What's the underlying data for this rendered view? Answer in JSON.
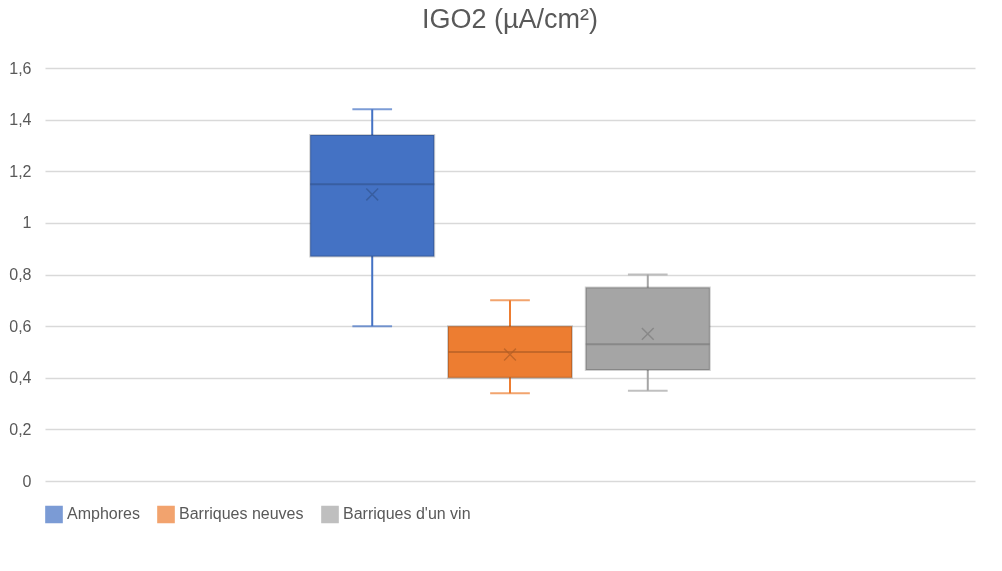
{
  "chart_data": {
    "type": "box",
    "title": "IGO2 (µA/cm²)",
    "categories": [
      null
    ],
    "series": [
      {
        "name": "Amphores",
        "color": "#4472c4",
        "boxes": [
          {
            "low": 0.6,
            "q1": 0.87,
            "median": 1.15,
            "q3": 1.34,
            "high": 1.44,
            "mean": 1.11
          }
        ]
      },
      {
        "name": "Barriques neuves",
        "color": "#ed7d31",
        "boxes": [
          {
            "low": 0.34,
            "q1": 0.4,
            "median": 0.5,
            "q3": 0.6,
            "high": 0.7,
            "mean": 0.49
          }
        ]
      },
      {
        "name": "Barriques d'un vin",
        "color": "#a5a5a5",
        "boxes": [
          {
            "low": 0.35,
            "q1": 0.43,
            "median": 0.53,
            "q3": 0.75,
            "high": 0.8,
            "mean": 0.57
          }
        ]
      }
    ],
    "ylim": [
      0,
      1.6
    ],
    "yticks": [
      0,
      {
        "value": 0.2,
        "label": "0,2"
      },
      {
        "value": 0.4,
        "label": "0,4"
      },
      {
        "value": 0.6,
        "label": "0,6"
      },
      {
        "value": 0.8,
        "label": "0,8"
      },
      1,
      {
        "value": 1.2,
        "label": "1,2"
      },
      {
        "value": 1.4,
        "label": "1,4"
      },
      {
        "value": 1.6,
        "label": "1,6"
      }
    ],
    "grid": "y",
    "legend": "bottom"
  }
}
